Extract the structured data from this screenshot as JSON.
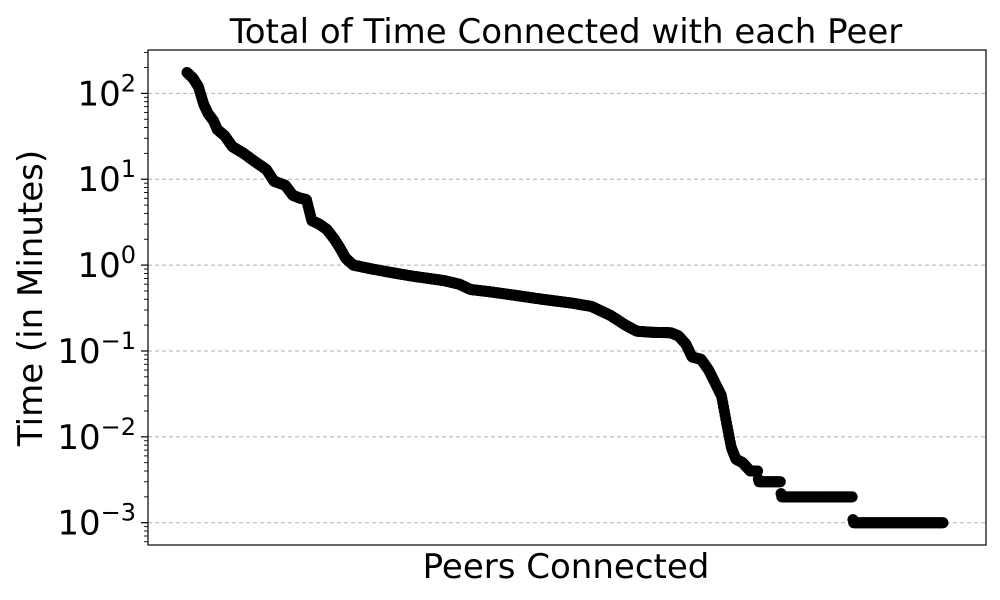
{
  "chart_data": {
    "type": "scatter",
    "title": "Total of Time Connected with each Peer",
    "xlabel": "Peers Connected",
    "ylabel": "Time (in Minutes)",
    "y_scale": "log",
    "ylim": [
      0.00055,
      320
    ],
    "y_ticks": [
      {
        "base": "10",
        "exp": "−3",
        "value": 0.001
      },
      {
        "base": "10",
        "exp": "−2",
        "value": 0.01
      },
      {
        "base": "10",
        "exp": "−1",
        "value": 0.1
      },
      {
        "base": "10",
        "exp": "0",
        "value": 1
      },
      {
        "base": "10",
        "exp": "1",
        "value": 10
      },
      {
        "base": "10",
        "exp": "2",
        "value": 100
      }
    ],
    "x_ticks_visible": false,
    "grid": "y-major-dashed",
    "marker_color": "#000000",
    "x_range": [
      0,
      1000
    ],
    "curve": [
      [
        0,
        175
      ],
      [
        8,
        150
      ],
      [
        15,
        120
      ],
      [
        22,
        75
      ],
      [
        28,
        58
      ],
      [
        35,
        48
      ],
      [
        40,
        38
      ],
      [
        50,
        32
      ],
      [
        60,
        24
      ],
      [
        75,
        20
      ],
      [
        90,
        16
      ],
      [
        105,
        13
      ],
      [
        115,
        9.5
      ],
      [
        130,
        8.5
      ],
      [
        140,
        6.5
      ],
      [
        150,
        6.0
      ],
      [
        158,
        5.8
      ],
      [
        165,
        3.3
      ],
      [
        175,
        3.0
      ],
      [
        185,
        2.6
      ],
      [
        195,
        2.0
      ],
      [
        202,
        1.6
      ],
      [
        210,
        1.2
      ],
      [
        220,
        1.0
      ],
      [
        245,
        0.9
      ],
      [
        270,
        0.82
      ],
      [
        300,
        0.74
      ],
      [
        340,
        0.66
      ],
      [
        360,
        0.6
      ],
      [
        375,
        0.52
      ],
      [
        400,
        0.49
      ],
      [
        430,
        0.45
      ],
      [
        470,
        0.4
      ],
      [
        510,
        0.36
      ],
      [
        535,
        0.33
      ],
      [
        560,
        0.26
      ],
      [
        580,
        0.2
      ],
      [
        595,
        0.17
      ],
      [
        615,
        0.165
      ],
      [
        640,
        0.163
      ],
      [
        650,
        0.15
      ],
      [
        660,
        0.12
      ],
      [
        668,
        0.085
      ],
      [
        680,
        0.08
      ],
      [
        690,
        0.06
      ],
      [
        700,
        0.04
      ],
      [
        707,
        0.03
      ],
      [
        714,
        0.014
      ],
      [
        720,
        0.0075
      ],
      [
        726,
        0.0055
      ],
      [
        735,
        0.005
      ],
      [
        745,
        0.004
      ],
      [
        755,
        0.004
      ],
      [
        756,
        0.003
      ],
      [
        785,
        0.003
      ],
      [
        786,
        0.002
      ],
      [
        880,
        0.002
      ],
      [
        881,
        0.001
      ],
      [
        1000,
        0.001
      ]
    ],
    "point_count": 1000
  }
}
